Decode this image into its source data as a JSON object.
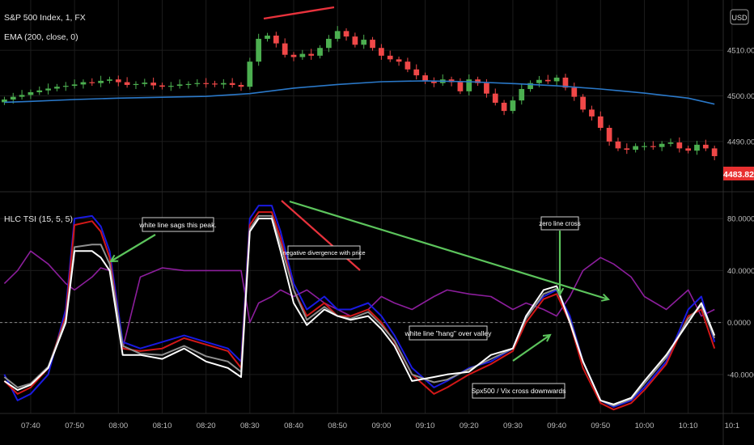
{
  "header": {
    "symbol": "S&P 500 Index, 1, FX",
    "ema_label": "EMA (200, close, 0)",
    "indicator_label": "HLC TSI (15, 5, 5)",
    "currency_button": "USD"
  },
  "colors": {
    "background": "#000000",
    "grid": "#1c1c1c",
    "candle_up": "#4caf50",
    "candle_down": "#f04848",
    "ema": "#2a78c8",
    "tsi_blue": "#1a1ae0",
    "tsi_red": "#d21818",
    "tsi_white": "#ffffff",
    "tsi_gray": "#909090",
    "tsi_purple": "#8c1e9c",
    "annotation_green": "#5cc45c",
    "annotation_red": "#e8323c",
    "last_price_bg": "#e83030"
  },
  "chart_data": [
    {
      "type": "candlestick",
      "name": "price",
      "x": [
        "07:34",
        "07:36",
        "07:38",
        "07:40",
        "07:42",
        "07:44",
        "07:46",
        "07:48",
        "07:50",
        "07:52",
        "07:54",
        "07:56",
        "07:58",
        "08:00",
        "08:02",
        "08:04",
        "08:06",
        "08:08",
        "08:10",
        "08:12",
        "08:14",
        "08:16",
        "08:18",
        "08:20",
        "08:22",
        "08:24",
        "08:26",
        "08:28",
        "08:30",
        "08:32",
        "08:34",
        "08:36",
        "08:38",
        "08:40",
        "08:42",
        "08:44",
        "08:46",
        "08:48",
        "08:50",
        "08:52",
        "08:54",
        "08:56",
        "08:58",
        "09:00",
        "09:02",
        "09:04",
        "09:06",
        "09:08",
        "09:10",
        "09:12",
        "09:14",
        "09:16",
        "09:18",
        "09:20",
        "09:22",
        "09:24",
        "09:26",
        "09:28",
        "09:30",
        "09:32",
        "09:34",
        "09:36",
        "09:38",
        "09:40",
        "09:42",
        "09:44",
        "09:46",
        "09:48",
        "09:50",
        "09:52",
        "09:54",
        "09:56",
        "09:58",
        "10:00",
        "10:02",
        "10:04",
        "10:06",
        "10:08",
        "10:10",
        "10:12",
        "10:14",
        "10:16"
      ],
      "close": [
        4499.2,
        4499.8,
        4500.2,
        4500.8,
        4501.2,
        4501.6,
        4502.0,
        4502.2,
        4502.5,
        4503.0,
        4502.8,
        4503.3,
        4503.6,
        4503.0,
        4502.4,
        4502.6,
        4502.9,
        4502.3,
        4502.0,
        4502.2,
        4502.5,
        4502.6,
        4502.8,
        4502.7,
        4502.5,
        4502.8,
        4502.4,
        4502.0,
        4507.5,
        4512.5,
        4513.2,
        4511.5,
        4509.0,
        4508.5,
        4509.2,
        4508.8,
        4510.5,
        4512.5,
        4514.2,
        4513.0,
        4511.2,
        4512.3,
        4510.5,
        4508.8,
        4508.0,
        4507.5,
        4505.8,
        4504.5,
        4503.2,
        4502.8,
        4503.6,
        4503.0,
        4501.0,
        4503.6,
        4502.8,
        4500.5,
        4498.5,
        4496.7,
        4499.0,
        4501.5,
        4502.8,
        4503.5,
        4503.2,
        4504.0,
        4501.8,
        4499.8,
        4497.0,
        4495.5,
        4493.0,
        4490.0,
        4488.5,
        4488.2,
        4489.0,
        4489.0,
        4488.8,
        4489.5,
        4489.8,
        4488.5,
        4488.0,
        4489.3,
        4488.5,
        4486.8
      ],
      "ylim": [
        4479,
        4521
      ],
      "y_ticks": [
        "4510.00",
        "4500.00",
        "4490.00"
      ],
      "last_price": "4483.82"
    },
    {
      "type": "line",
      "name": "EMA (200, close, 0)",
      "x": [
        "07:34",
        "07:40",
        "07:50",
        "08:00",
        "08:10",
        "08:20",
        "08:30",
        "08:40",
        "08:50",
        "09:00",
        "09:10",
        "09:20",
        "09:30",
        "09:40",
        "09:50",
        "10:00",
        "10:10",
        "10:16"
      ],
      "values": [
        4498.6,
        4498.8,
        4499.2,
        4499.5,
        4499.7,
        4499.9,
        4500.5,
        4501.7,
        4502.5,
        4503.1,
        4503.3,
        4503.1,
        4502.7,
        4502.2,
        4501.5,
        4500.6,
        4499.5,
        4498.2
      ]
    },
    {
      "type": "line",
      "name": "HLC TSI (15, 5, 5)",
      "ylim": [
        -70,
        100
      ],
      "y_ticks": [
        "80.0000",
        "40.0000",
        "0.0000",
        "-40.0000"
      ],
      "zero_line": true,
      "x_ticks": [
        "07:40",
        "07:50",
        "08:00",
        "08:10",
        "08:20",
        "08:30",
        "08:40",
        "08:50",
        "09:00",
        "09:10",
        "09:20",
        "09:30",
        "09:40",
        "09:50",
        "10:00",
        "10:10",
        "10:1"
      ],
      "series": [
        {
          "color": "blue",
          "x": [
            "07:34",
            "07:37",
            "07:40",
            "07:44",
            "07:48",
            "07:50",
            "07:54",
            "07:56",
            "07:58",
            "08:01",
            "08:05",
            "08:10",
            "08:15",
            "08:20",
            "08:25",
            "08:28",
            "08:30",
            "08:32",
            "08:35",
            "08:37",
            "08:40",
            "08:43",
            "08:47",
            "08:50",
            "08:53",
            "08:57",
            "09:00",
            "09:03",
            "09:07",
            "09:12",
            "09:15",
            "09:20",
            "09:25",
            "09:30",
            "09:33",
            "09:37",
            "09:40",
            "09:43",
            "09:46",
            "09:50",
            "09:53",
            "09:57",
            "10:00",
            "10:05",
            "10:10",
            "10:13",
            "10:16"
          ],
          "values": [
            -40,
            -60,
            -55,
            -40,
            10,
            80,
            82,
            74,
            55,
            -15,
            -20,
            -15,
            -10,
            -15,
            -20,
            -30,
            80,
            90,
            90,
            70,
            30,
            10,
            20,
            10,
            10,
            15,
            5,
            -10,
            -35,
            -50,
            -45,
            -35,
            -30,
            -20,
            5,
            20,
            25,
            5,
            -30,
            -60,
            -65,
            -60,
            -50,
            -30,
            10,
            20,
            -15
          ]
        },
        {
          "color": "red",
          "x": [
            "07:34",
            "07:37",
            "07:40",
            "07:44",
            "07:48",
            "07:50",
            "07:54",
            "07:56",
            "07:58",
            "08:01",
            "08:05",
            "08:10",
            "08:15",
            "08:20",
            "08:25",
            "08:28",
            "08:30",
            "08:32",
            "08:35",
            "08:37",
            "08:40",
            "08:43",
            "08:47",
            "08:50",
            "08:53",
            "08:57",
            "09:00",
            "09:03",
            "09:07",
            "09:12",
            "09:15",
            "09:20",
            "09:25",
            "09:30",
            "09:33",
            "09:37",
            "09:40",
            "09:43",
            "09:46",
            "09:50",
            "09:53",
            "09:57",
            "10:00",
            "10:05",
            "10:10",
            "10:13",
            "10:16"
          ],
          "values": [
            -45,
            -55,
            -50,
            -35,
            5,
            75,
            78,
            70,
            50,
            -20,
            -22,
            -20,
            -12,
            -17,
            -22,
            -35,
            75,
            85,
            85,
            65,
            25,
            5,
            15,
            5,
            5,
            10,
            0,
            -15,
            -40,
            -55,
            -50,
            -40,
            -32,
            -22,
            0,
            18,
            22,
            0,
            -35,
            -62,
            -67,
            -62,
            -52,
            -32,
            5,
            10,
            -20
          ]
        },
        {
          "color": "white",
          "x": [
            "07:34",
            "07:37",
            "07:40",
            "07:44",
            "07:48",
            "07:50",
            "07:54",
            "07:56",
            "07:58",
            "08:01",
            "08:05",
            "08:10",
            "08:15",
            "08:20",
            "08:25",
            "08:28",
            "08:30",
            "08:32",
            "08:35",
            "08:37",
            "08:40",
            "08:43",
            "08:47",
            "08:50",
            "08:53",
            "08:57",
            "09:00",
            "09:03",
            "09:07",
            "09:12",
            "09:15",
            "09:20",
            "09:25",
            "09:30",
            "09:33",
            "09:37",
            "09:40",
            "09:43",
            "09:46",
            "09:50",
            "09:53",
            "09:57",
            "10:00",
            "10:05",
            "10:10",
            "10:13",
            "10:16"
          ],
          "values": [
            -45,
            -52,
            -48,
            -35,
            0,
            55,
            55,
            50,
            40,
            -25,
            -25,
            -28,
            -20,
            -30,
            -35,
            -42,
            70,
            80,
            80,
            55,
            15,
            -2,
            10,
            5,
            2,
            5,
            -5,
            -18,
            -45,
            -42,
            -40,
            -38,
            -25,
            -20,
            5,
            25,
            28,
            0,
            -30,
            -60,
            -63,
            -58,
            -45,
            -25,
            0,
            15,
            -10
          ]
        },
        {
          "color": "gray",
          "x": [
            "07:34",
            "07:37",
            "07:40",
            "07:44",
            "07:48",
            "07:50",
            "07:54",
            "07:56",
            "07:58",
            "08:01",
            "08:05",
            "08:10",
            "08:15",
            "08:20",
            "08:25",
            "08:28",
            "08:30",
            "08:32",
            "08:35",
            "08:37",
            "08:40",
            "08:43",
            "08:47",
            "08:50",
            "08:53",
            "08:57",
            "09:00",
            "09:03",
            "09:07",
            "09:12",
            "09:15",
            "09:20",
            "09:25",
            "09:30",
            "09:33",
            "09:37",
            "09:40",
            "09:43",
            "09:46",
            "09:50",
            "09:53",
            "09:57",
            "10:00",
            "10:05",
            "10:10",
            "10:13",
            "10:16"
          ],
          "values": [
            -42,
            -50,
            -47,
            -34,
            2,
            58,
            60,
            60,
            45,
            -18,
            -24,
            -25,
            -18,
            -26,
            -30,
            -38,
            72,
            82,
            82,
            60,
            25,
            2,
            12,
            5,
            3,
            8,
            -2,
            -14,
            -40,
            -46,
            -44,
            -36,
            -28,
            -20,
            3,
            22,
            26,
            2,
            -30,
            -60,
            -64,
            -59,
            -47,
            -27,
            3,
            13,
            -12
          ]
        },
        {
          "color": "purple",
          "x": [
            "07:34",
            "07:37",
            "07:40",
            "07:44",
            "07:48",
            "07:50",
            "07:54",
            "07:56",
            "07:58",
            "08:01",
            "08:05",
            "08:10",
            "08:15",
            "08:20",
            "08:25",
            "08:28",
            "08:30",
            "08:32",
            "08:35",
            "08:37",
            "08:40",
            "08:43",
            "08:47",
            "08:50",
            "08:53",
            "08:57",
            "09:00",
            "09:03",
            "09:07",
            "09:12",
            "09:15",
            "09:20",
            "09:25",
            "09:30",
            "09:33",
            "09:37",
            "09:40",
            "09:43",
            "09:46",
            "09:50",
            "09:53",
            "09:57",
            "10:00",
            "10:05",
            "10:10",
            "10:13",
            "10:16"
          ],
          "values": [
            30,
            40,
            55,
            45,
            30,
            25,
            35,
            42,
            40,
            -20,
            35,
            42,
            40,
            40,
            40,
            40,
            0,
            15,
            20,
            25,
            20,
            25,
            15,
            10,
            5,
            10,
            20,
            15,
            10,
            20,
            25,
            22,
            20,
            10,
            15,
            10,
            5,
            20,
            40,
            50,
            45,
            35,
            20,
            10,
            25,
            5,
            10
          ]
        }
      ]
    }
  ],
  "annotations": [
    {
      "key": "a1",
      "text": "white line sags this peak."
    },
    {
      "key": "a2",
      "text": "negative divergence with price"
    },
    {
      "key": "a3",
      "text": "zero line cross"
    },
    {
      "key": "a4",
      "text": "white line \"hang\" over valley"
    },
    {
      "key": "a5",
      "text": "Spx500 / Vix cross downwards"
    }
  ]
}
